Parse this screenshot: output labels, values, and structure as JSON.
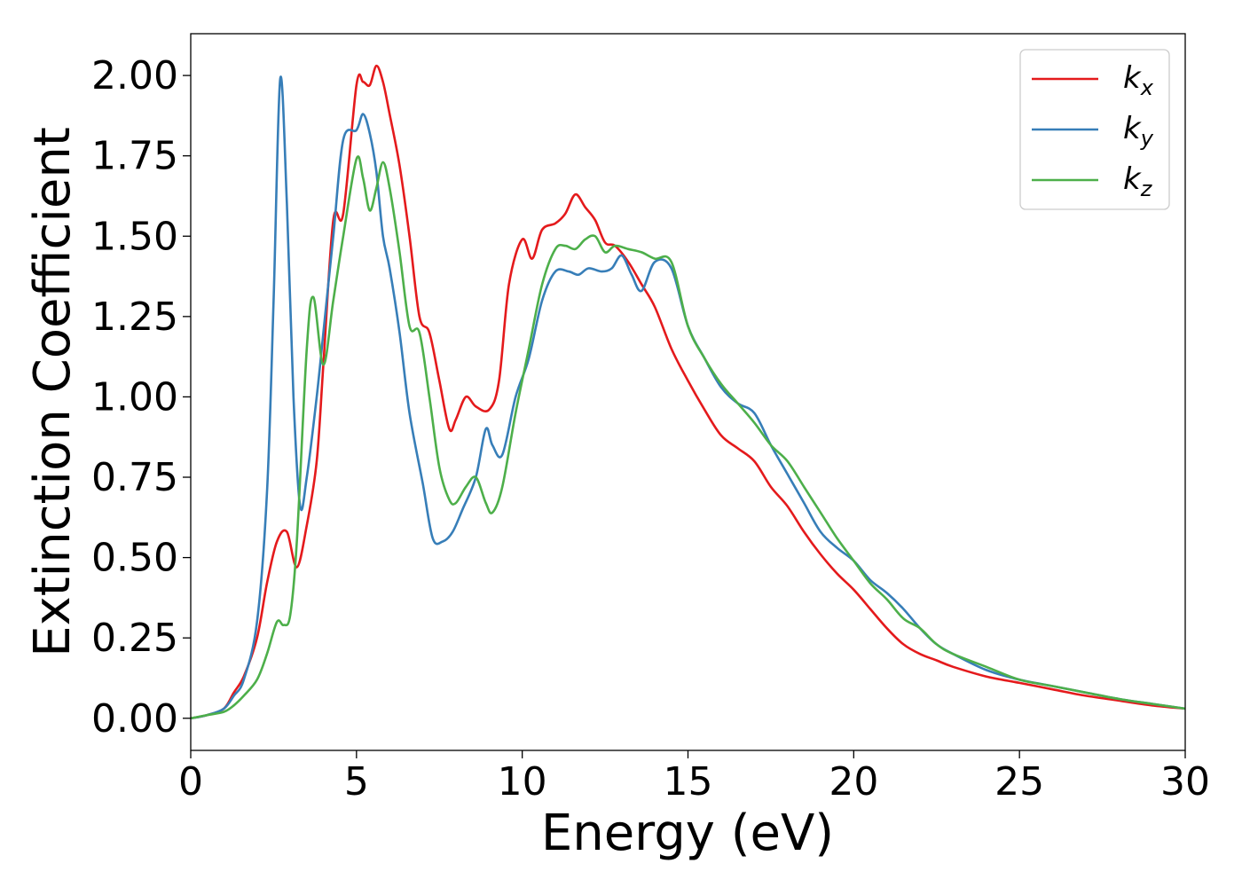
{
  "chart_data": {
    "type": "line",
    "title": "",
    "xlabel": "Energy (eV)",
    "ylabel": "Extinction Coefficient",
    "xlim": [
      0,
      30
    ],
    "ylim": [
      -0.1,
      2.13
    ],
    "xticks": [
      0,
      5,
      10,
      15,
      20,
      25,
      30
    ],
    "xtick_labels": [
      "0",
      "5",
      "10",
      "15",
      "20",
      "25",
      "30"
    ],
    "yticks": [
      0,
      0.25,
      0.5,
      0.75,
      1.0,
      1.25,
      1.5,
      1.75,
      2.0
    ],
    "ytick_labels": [
      "0.00",
      "0.25",
      "0.50",
      "0.75",
      "1.00",
      "1.25",
      "1.50",
      "1.75",
      "2.00"
    ],
    "grid": false,
    "legend_position": "top-right",
    "series": [
      {
        "name": "k_x",
        "label_base": "k",
        "label_sub": "x",
        "color": "#e41a1c",
        "x": [
          0,
          0.5,
          1.0,
          1.3,
          1.6,
          2.0,
          2.3,
          2.6,
          2.9,
          3.2,
          3.5,
          3.8,
          4.0,
          4.3,
          4.6,
          5.0,
          5.2,
          5.4,
          5.6,
          5.8,
          6.0,
          6.3,
          6.6,
          6.9,
          7.2,
          7.5,
          7.8,
          8.0,
          8.3,
          8.6,
          9.0,
          9.3,
          9.6,
          10.0,
          10.3,
          10.6,
          11.0,
          11.3,
          11.6,
          11.9,
          12.2,
          12.5,
          12.8,
          13.2,
          13.6,
          14.0,
          14.5,
          15.0,
          15.5,
          16.0,
          16.5,
          17.0,
          17.5,
          18.0,
          18.5,
          19.0,
          19.5,
          20.0,
          20.5,
          21.0,
          21.5,
          22.0,
          22.5,
          23.0,
          24.0,
          25.0,
          26.0,
          27.0,
          28.0,
          29.0,
          30.0
        ],
        "y": [
          0,
          0.01,
          0.03,
          0.08,
          0.13,
          0.25,
          0.42,
          0.55,
          0.58,
          0.47,
          0.6,
          0.8,
          1.1,
          1.55,
          1.57,
          1.97,
          1.98,
          1.97,
          2.03,
          1.98,
          1.88,
          1.72,
          1.5,
          1.25,
          1.2,
          1.05,
          0.9,
          0.93,
          1.0,
          0.97,
          0.96,
          1.05,
          1.35,
          1.49,
          1.43,
          1.52,
          1.54,
          1.57,
          1.63,
          1.59,
          1.55,
          1.48,
          1.47,
          1.42,
          1.35,
          1.28,
          1.15,
          1.05,
          0.96,
          0.88,
          0.84,
          0.8,
          0.72,
          0.66,
          0.58,
          0.51,
          0.45,
          0.4,
          0.34,
          0.28,
          0.23,
          0.2,
          0.18,
          0.16,
          0.13,
          0.11,
          0.09,
          0.07,
          0.055,
          0.04,
          0.03
        ]
      },
      {
        "name": "k_y",
        "label_base": "k",
        "label_sub": "y",
        "color": "#377eb8",
        "x": [
          0,
          0.5,
          1.0,
          1.3,
          1.6,
          2.0,
          2.3,
          2.5,
          2.7,
          2.9,
          3.1,
          3.3,
          3.5,
          3.8,
          4.0,
          4.3,
          4.6,
          5.0,
          5.2,
          5.4,
          5.6,
          5.8,
          6.0,
          6.3,
          6.6,
          7.0,
          7.3,
          7.6,
          7.9,
          8.2,
          8.6,
          8.9,
          9.1,
          9.4,
          9.8,
          10.2,
          10.6,
          11.0,
          11.4,
          11.7,
          12.0,
          12.4,
          12.7,
          13.0,
          13.3,
          13.6,
          14.0,
          14.5,
          15.0,
          15.5,
          16.0,
          16.5,
          17.0,
          17.5,
          18.0,
          18.5,
          19.0,
          19.5,
          20.0,
          20.5,
          21.0,
          21.5,
          22.0,
          22.5,
          23.0,
          24.0,
          25.0,
          26.0,
          27.0,
          28.0,
          29.0,
          30.0
        ],
        "y": [
          0,
          0.01,
          0.03,
          0.07,
          0.12,
          0.3,
          0.7,
          1.3,
          1.99,
          1.6,
          1.0,
          0.66,
          0.75,
          1.0,
          1.2,
          1.5,
          1.8,
          1.83,
          1.88,
          1.82,
          1.7,
          1.5,
          1.4,
          1.2,
          0.95,
          0.73,
          0.56,
          0.55,
          0.58,
          0.65,
          0.75,
          0.9,
          0.85,
          0.82,
          1.0,
          1.12,
          1.3,
          1.39,
          1.39,
          1.38,
          1.4,
          1.39,
          1.4,
          1.44,
          1.38,
          1.33,
          1.42,
          1.4,
          1.22,
          1.12,
          1.03,
          0.98,
          0.95,
          0.85,
          0.76,
          0.67,
          0.58,
          0.53,
          0.49,
          0.43,
          0.39,
          0.34,
          0.28,
          0.23,
          0.2,
          0.15,
          0.12,
          0.1,
          0.08,
          0.06,
          0.045,
          0.03
        ]
      },
      {
        "name": "k_z",
        "label_base": "k",
        "label_sub": "z",
        "color": "#4daf4a",
        "x": [
          0,
          0.5,
          1.0,
          1.3,
          1.6,
          2.0,
          2.3,
          2.6,
          2.8,
          3.0,
          3.2,
          3.5,
          3.7,
          4.0,
          4.3,
          4.6,
          5.0,
          5.2,
          5.4,
          5.6,
          5.8,
          6.0,
          6.3,
          6.6,
          6.9,
          7.2,
          7.5,
          7.8,
          8.0,
          8.3,
          8.6,
          8.9,
          9.1,
          9.4,
          9.8,
          10.2,
          10.6,
          11.0,
          11.3,
          11.6,
          11.9,
          12.2,
          12.5,
          12.8,
          13.2,
          13.6,
          14.0,
          14.5,
          15.0,
          15.5,
          16.0,
          16.5,
          17.0,
          17.5,
          18.0,
          18.5,
          19.0,
          19.5,
          20.0,
          20.5,
          21.0,
          21.5,
          22.0,
          22.5,
          23.0,
          24.0,
          25.0,
          26.0,
          27.0,
          28.0,
          29.0,
          30.0
        ],
        "y": [
          0,
          0.01,
          0.02,
          0.04,
          0.07,
          0.12,
          0.2,
          0.3,
          0.29,
          0.32,
          0.55,
          1.15,
          1.31,
          1.1,
          1.3,
          1.5,
          1.74,
          1.68,
          1.58,
          1.65,
          1.73,
          1.65,
          1.45,
          1.22,
          1.2,
          1.0,
          0.78,
          0.68,
          0.67,
          0.72,
          0.75,
          0.67,
          0.64,
          0.72,
          0.95,
          1.15,
          1.35,
          1.46,
          1.47,
          1.46,
          1.49,
          1.5,
          1.45,
          1.47,
          1.46,
          1.45,
          1.43,
          1.42,
          1.22,
          1.12,
          1.04,
          0.98,
          0.92,
          0.85,
          0.8,
          0.72,
          0.64,
          0.56,
          0.49,
          0.42,
          0.37,
          0.31,
          0.28,
          0.23,
          0.2,
          0.16,
          0.12,
          0.1,
          0.08,
          0.06,
          0.045,
          0.03
        ]
      }
    ]
  }
}
